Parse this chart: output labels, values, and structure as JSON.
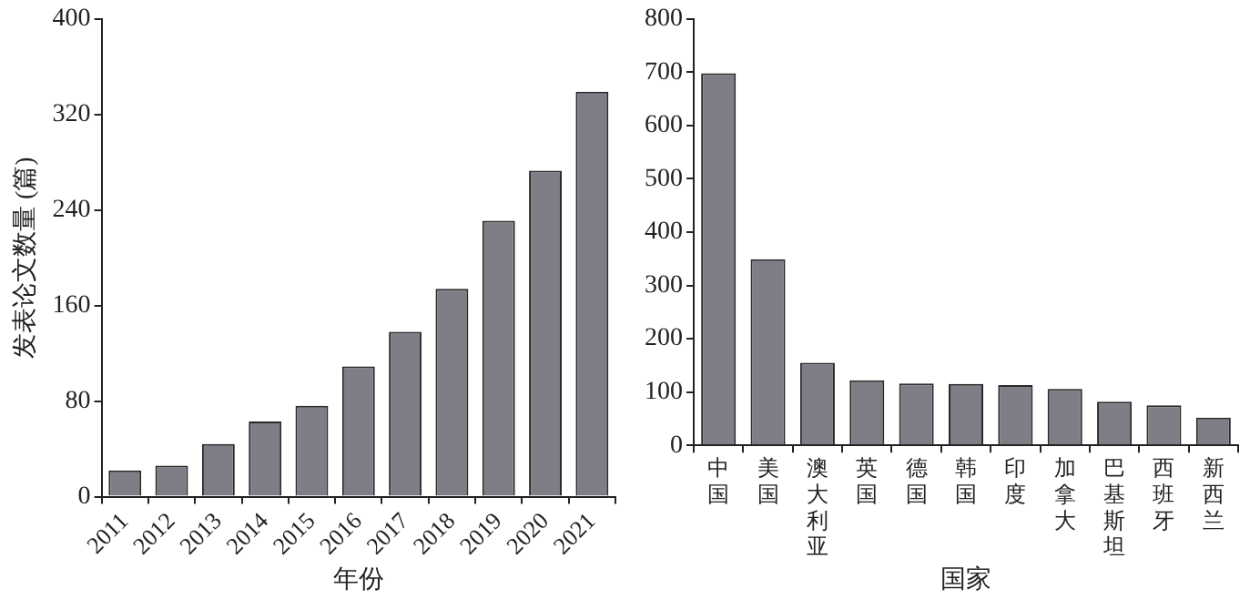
{
  "chart_data": [
    {
      "type": "bar",
      "xlabel": "年份",
      "ylabel": "发表论文数量 (篇)",
      "categories": [
        "2011",
        "2012",
        "2013",
        "2014",
        "2015",
        "2016",
        "2017",
        "2018",
        "2019",
        "2020",
        "2021"
      ],
      "values": [
        22,
        26,
        44,
        63,
        76,
        109,
        138,
        174,
        231,
        273,
        339
      ],
      "color": "#7f7d86",
      "ylim": [
        0,
        400
      ],
      "yticks": [
        0,
        80,
        160,
        240,
        320,
        400
      ],
      "grid": false,
      "legend": false
    },
    {
      "type": "bar",
      "xlabel": "国家",
      "categories": [
        "中国",
        "美国",
        "澳大利亚",
        "英国",
        "德国",
        "韩国",
        "印度",
        "加拿大",
        "巴基斯坦",
        "西班牙",
        "新西兰"
      ],
      "values": [
        698,
        349,
        155,
        122,
        116,
        115,
        113,
        106,
        82,
        75,
        52
      ],
      "color": "#7f7d86",
      "ylim": [
        0,
        800
      ],
      "yticks": [
        0,
        100,
        200,
        300,
        400,
        500,
        600,
        700,
        800
      ],
      "grid": false,
      "legend": false
    }
  ]
}
